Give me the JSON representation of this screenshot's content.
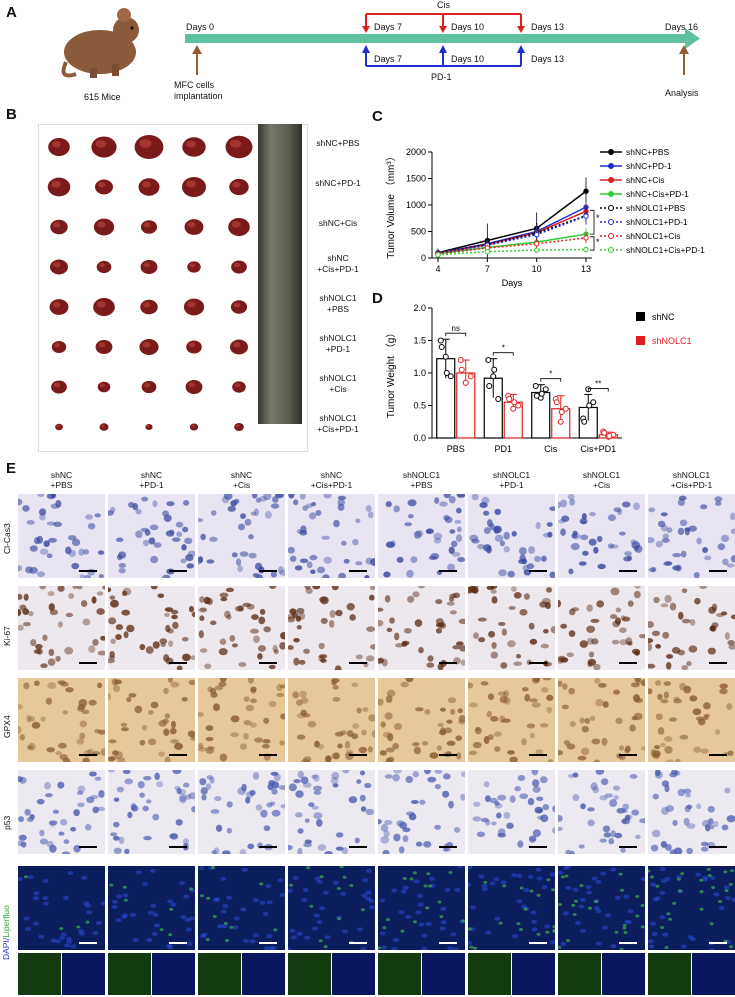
{
  "panels": {
    "A": "A",
    "B": "B",
    "C": "C",
    "D": "D",
    "E": "E"
  },
  "timeline": {
    "mouse_label": "615 Mice",
    "day0": "Days 0",
    "implant": "MFC cells\nimplantation",
    "cis_label": "Cis",
    "pd1_label": "PD-1",
    "cis_days": [
      "Days 7",
      "Days 10",
      "Days 13"
    ],
    "pd1_days": [
      "Days 7",
      "Days 10",
      "Days 13"
    ],
    "day16": "Days 16",
    "analysis": "Analysis",
    "colors": {
      "arrow": "#5ec2a0",
      "cis": "#e02020",
      "pd1": "#1f2fd0",
      "brown": "#9a5a33"
    }
  },
  "tumor_groups": [
    "shNC+PBS",
    "shNC+PD-1",
    "shNC+Cis",
    "shNC\n+Cis+PD-1",
    "shNOLC1\n+PBS",
    "shNOLC1\n+PD-1",
    "shNOLC1\n+Cis",
    "shNOLC1\n+Cis+PD-1"
  ],
  "chart_data": [
    {
      "type": "line",
      "ylabel": "Tumor Volume （mm³）",
      "xlabel": "Days",
      "x": [
        4,
        7,
        10,
        13
      ],
      "ylim": [
        0,
        2000
      ],
      "yticks": [
        0,
        500,
        1000,
        1500,
        2000
      ],
      "series": [
        {
          "name": "shNC+PBS",
          "color": "#000000",
          "style": "solid",
          "marker": "diamond",
          "values": [
            100,
            330,
            560,
            1260
          ],
          "err": [
            80,
            320,
            300,
            260
          ]
        },
        {
          "name": "shNC+PD-1",
          "color": "#1f2fd0",
          "style": "solid",
          "marker": "square",
          "values": [
            95,
            270,
            500,
            960
          ],
          "err": [
            60,
            100,
            220,
            200
          ]
        },
        {
          "name": "shNC+Cis",
          "color": "#e02020",
          "style": "solid",
          "marker": "triangle",
          "values": [
            90,
            250,
            480,
            880
          ],
          "err": [
            50,
            90,
            200,
            180
          ]
        },
        {
          "name": "shNC+Cis+PD-1",
          "color": "#33cc33",
          "style": "solid",
          "marker": "x",
          "values": [
            80,
            200,
            300,
            450
          ],
          "err": [
            40,
            70,
            100,
            120
          ]
        },
        {
          "name": "shNOLC1+PBS",
          "color": "#000000",
          "style": "dotted",
          "marker": "circle",
          "values": [
            90,
            260,
            470,
            800
          ],
          "err": [
            50,
            100,
            200,
            150
          ]
        },
        {
          "name": "shNOLC1+PD-1",
          "color": "#1f2fd0",
          "style": "dotted",
          "marker": "square",
          "values": [
            85,
            240,
            440,
            790
          ],
          "err": [
            40,
            80,
            180,
            160
          ]
        },
        {
          "name": "shNOLC1+Cis",
          "color": "#e02020",
          "style": "dotted",
          "marker": "triangle",
          "values": [
            75,
            190,
            270,
            380
          ],
          "err": [
            40,
            60,
            90,
            100
          ]
        },
        {
          "name": "shNOLC1+Cis+PD-1",
          "color": "#33cc33",
          "style": "dotted",
          "marker": "diamond",
          "values": [
            60,
            120,
            150,
            160
          ],
          "err": [
            30,
            40,
            50,
            60
          ]
        }
      ],
      "annotations": [
        "*",
        "*"
      ]
    },
    {
      "type": "bar",
      "ylabel": "Tumor Weight （g）",
      "categories": [
        "PBS",
        "PD1",
        "Cis",
        "Cis+PD1"
      ],
      "ylim": [
        0,
        2.0
      ],
      "yticks": [
        "0.0",
        "0.5",
        "1.0",
        "1.5",
        "2.0"
      ],
      "series": [
        {
          "name": "shNC",
          "color": "#000000",
          "values": [
            1.22,
            0.92,
            0.7,
            0.47
          ],
          "err": [
            0.3,
            0.3,
            0.12,
            0.2
          ],
          "points": [
            [
              1.5,
              1.25,
              0.95,
              1.4,
              1.0
            ],
            [
              1.2,
              0.95,
              0.6,
              0.8,
              1.05
            ],
            [
              0.8,
              0.62,
              0.75,
              0.65,
              0.68
            ],
            [
              0.3,
              0.75,
              0.55,
              0.25,
              0.5
            ]
          ]
        },
        {
          "name": "shNOLC1",
          "color": "#e02020",
          "values": [
            1.0,
            0.55,
            0.45,
            0.05
          ],
          "err": [
            0.2,
            0.12,
            0.2,
            0.04
          ],
          "points": [
            [
              1.2,
              0.85,
              0.95,
              1.05
            ],
            [
              0.65,
              0.45,
              0.5,
              0.6,
              0.55
            ],
            [
              0.6,
              0.25,
              0.45,
              0.55,
              0.4
            ],
            [
              0.1,
              0.02,
              0.05,
              0.08,
              0.03
            ]
          ]
        }
      ],
      "significance": [
        "ns",
        "*",
        "*",
        "**"
      ]
    }
  ],
  "ihc": {
    "columns": [
      "shNC\n+PBS",
      "shNC\n+PD-1",
      "shNC\n+Cis",
      "shNC\n+Cis+PD-1",
      "shNOLC1\n+PBS",
      "shNOLC1\n+PD-1",
      "shNOLC1\n+Cis",
      "shNOLC1\n+Cis+PD-1"
    ],
    "rows": [
      "Cl-Cas3",
      "Ki-67",
      "GPX4",
      "p53"
    ],
    "fluo_label_a": "DAPI/",
    "fluo_label_b": "Liperfluo"
  }
}
